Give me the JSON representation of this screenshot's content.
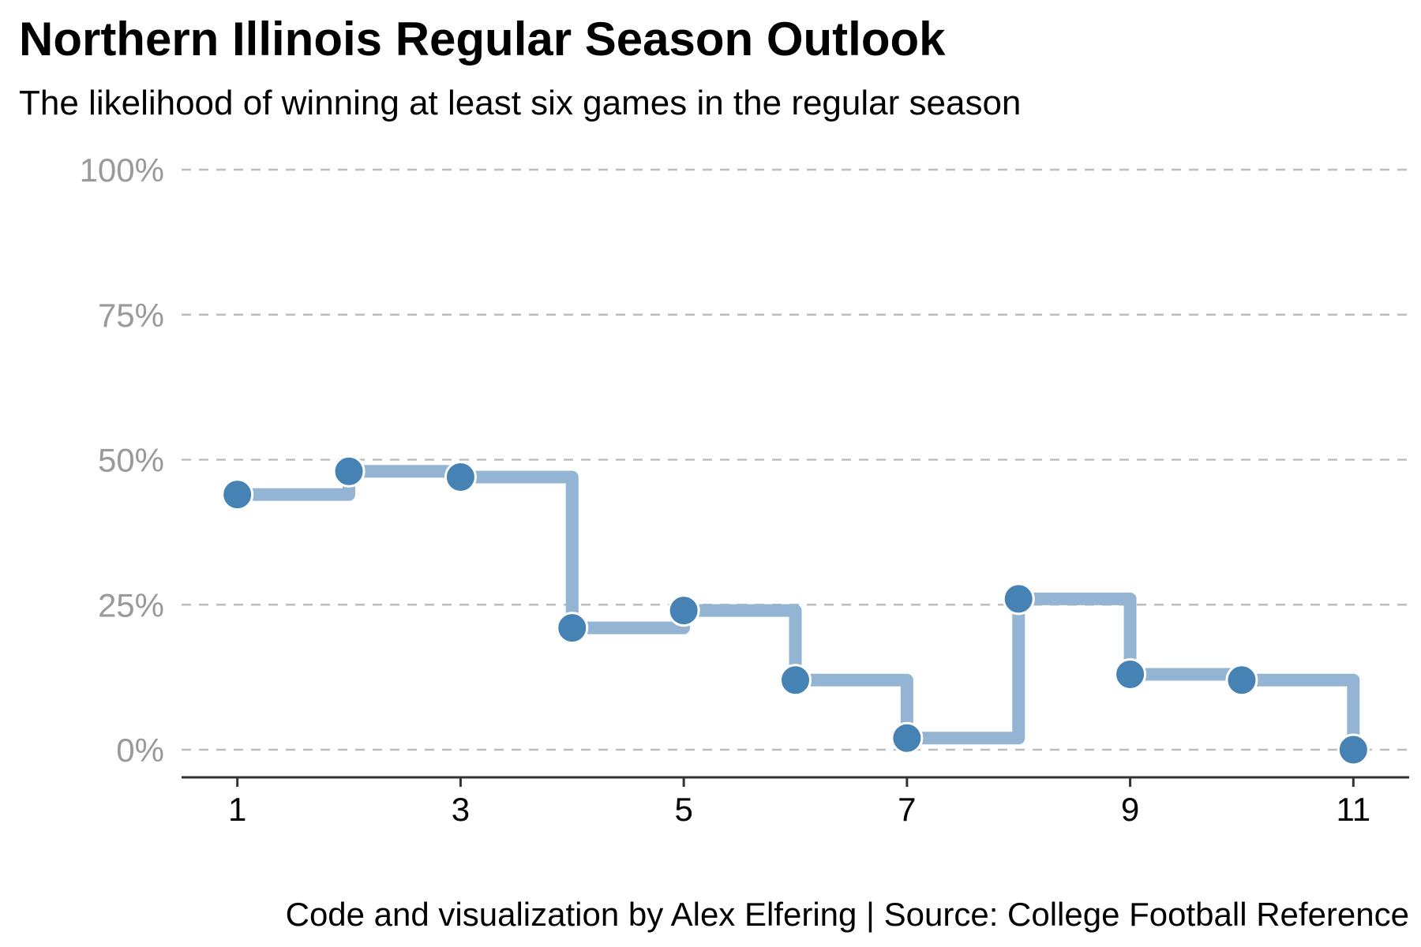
{
  "chart_data": {
    "type": "line",
    "step": "post",
    "title": "Northern Illinois Regular Season Outlook",
    "subtitle": "The likelihood of winning at least six games in the regular season",
    "caption": "Code and visualization by Alex Elfering | Source: College Football Reference",
    "xlabel": "",
    "ylabel": "",
    "x": [
      1,
      2,
      3,
      4,
      5,
      6,
      7,
      8,
      9,
      10,
      11
    ],
    "values": [
      0.44,
      0.48,
      0.47,
      0.21,
      0.24,
      0.12,
      0.02,
      0.26,
      0.13,
      0.12,
      0.0
    ],
    "x_ticks": [
      1,
      3,
      5,
      7,
      9,
      11
    ],
    "x_tick_labels": [
      "1",
      "3",
      "5",
      "7",
      "9",
      "11"
    ],
    "y_ticks": [
      0,
      0.25,
      0.5,
      0.75,
      1.0
    ],
    "y_tick_labels": [
      "0%",
      "25%",
      "50%",
      "75%",
      "100%"
    ],
    "xlim": [
      0.5,
      11.5
    ],
    "ylim": [
      -0.05,
      1.0
    ],
    "grid": "horizontal dashed",
    "legend": "none",
    "colors": {
      "step_line": "#94b4d3",
      "point_fill": "#4682b4",
      "point_stroke": "#ffffff",
      "gridline": "#bdbdbd",
      "y_tick_text": "#9a9a9a",
      "axis": "#333333"
    }
  }
}
